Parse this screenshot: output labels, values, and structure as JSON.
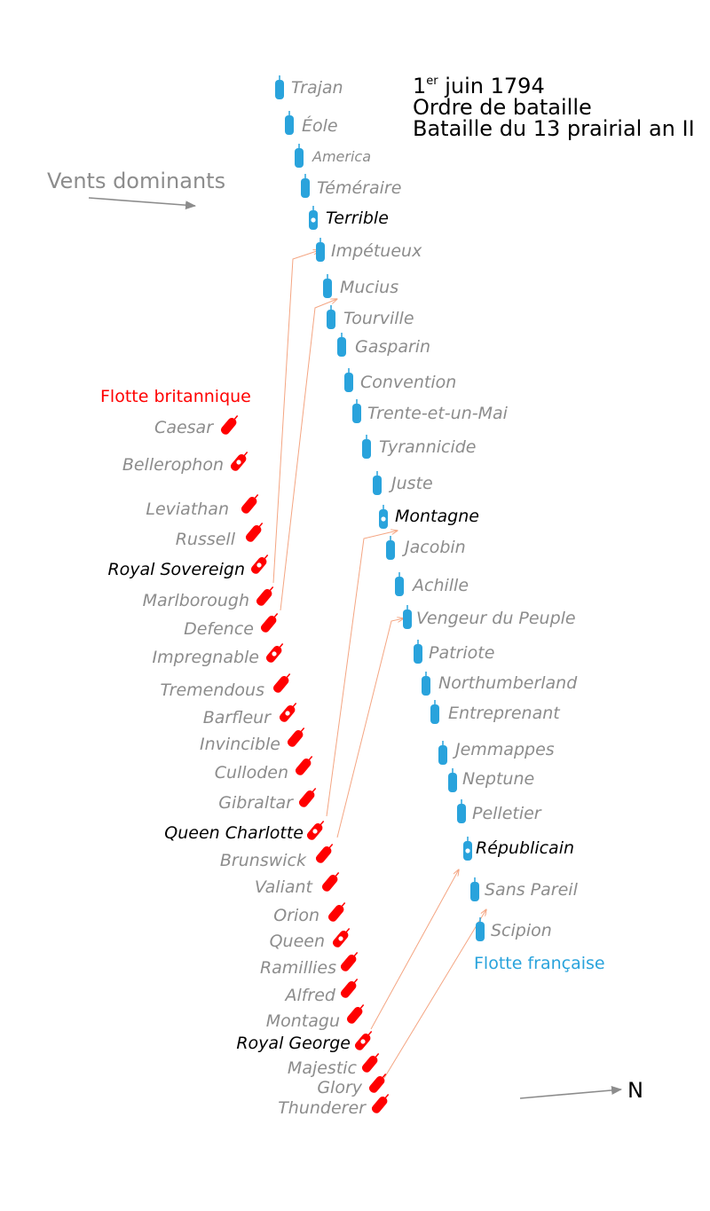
{
  "title": {
    "day": "1",
    "day_suffix": "er",
    "date_rest": " juin 1794",
    "line2": "Ordre de bataille",
    "line3": "Bataille du 13 prairial an II"
  },
  "winds_label": "Vents dominants",
  "north_label": "N",
  "british_fleet_label": "Flotte britannique",
  "french_fleet_label": "Flotte française",
  "colors": {
    "british": "#ff0000",
    "french": "#29a3dc",
    "arrow_gray": "#8c8c8c",
    "movement": "#f4a582"
  },
  "french_ships": [
    {
      "name": "Trajan",
      "flag": false
    },
    {
      "name": "Éole",
      "flag": false
    },
    {
      "name": "America",
      "flag": false
    },
    {
      "name": "Téméraire",
      "flag": false
    },
    {
      "name": "Terrible",
      "flag": true
    },
    {
      "name": "Impétueux",
      "flag": false
    },
    {
      "name": "Mucius",
      "flag": false
    },
    {
      "name": "Tourville",
      "flag": false
    },
    {
      "name": "Gasparin",
      "flag": false
    },
    {
      "name": "Convention",
      "flag": false
    },
    {
      "name": "Trente-et-un-Mai",
      "flag": false
    },
    {
      "name": "Tyrannicide",
      "flag": false
    },
    {
      "name": "Juste",
      "flag": false
    },
    {
      "name": "Montagne",
      "flag": true
    },
    {
      "name": "Jacobin",
      "flag": false
    },
    {
      "name": "Achille",
      "flag": false
    },
    {
      "name": "Vengeur du Peuple",
      "flag": false
    },
    {
      "name": "Patriote",
      "flag": false
    },
    {
      "name": "Northumberland",
      "flag": false
    },
    {
      "name": "Entreprenant",
      "flag": false
    },
    {
      "name": "Jemmappes",
      "flag": false
    },
    {
      "name": "Neptune",
      "flag": false
    },
    {
      "name": "Pelletier",
      "flag": false
    },
    {
      "name": "Républicain",
      "flag": true
    },
    {
      "name": "Sans Pareil",
      "flag": false
    },
    {
      "name": "Scipion",
      "flag": false
    }
  ],
  "british_ships": [
    {
      "name": "Caesar",
      "flag": false
    },
    {
      "name": "Bellerophon",
      "flag": true
    },
    {
      "name": "Leviathan",
      "flag": false
    },
    {
      "name": "Russell",
      "flag": false
    },
    {
      "name": "Royal Sovereign",
      "flag": true
    },
    {
      "name": "Marlborough",
      "flag": false
    },
    {
      "name": "Defence",
      "flag": false
    },
    {
      "name": "Impregnable",
      "flag": true
    },
    {
      "name": "Tremendous",
      "flag": false
    },
    {
      "name": "Barfleur",
      "flag": true
    },
    {
      "name": "Invincible",
      "flag": false
    },
    {
      "name": "Culloden",
      "flag": false
    },
    {
      "name": "Gibraltar",
      "flag": false
    },
    {
      "name": "Queen Charlotte",
      "flag": true
    },
    {
      "name": "Brunswick",
      "flag": false
    },
    {
      "name": "Valiant",
      "flag": false
    },
    {
      "name": "Orion",
      "flag": false
    },
    {
      "name": "Queen",
      "flag": true
    },
    {
      "name": "Ramillies",
      "flag": false
    },
    {
      "name": "Alfred",
      "flag": false
    },
    {
      "name": "Montagu",
      "flag": false
    },
    {
      "name": "Royal George",
      "flag": true
    },
    {
      "name": "Majestic",
      "flag": false
    },
    {
      "name": "Glory",
      "flag": false
    },
    {
      "name": "Thunderer",
      "flag": false
    }
  ]
}
